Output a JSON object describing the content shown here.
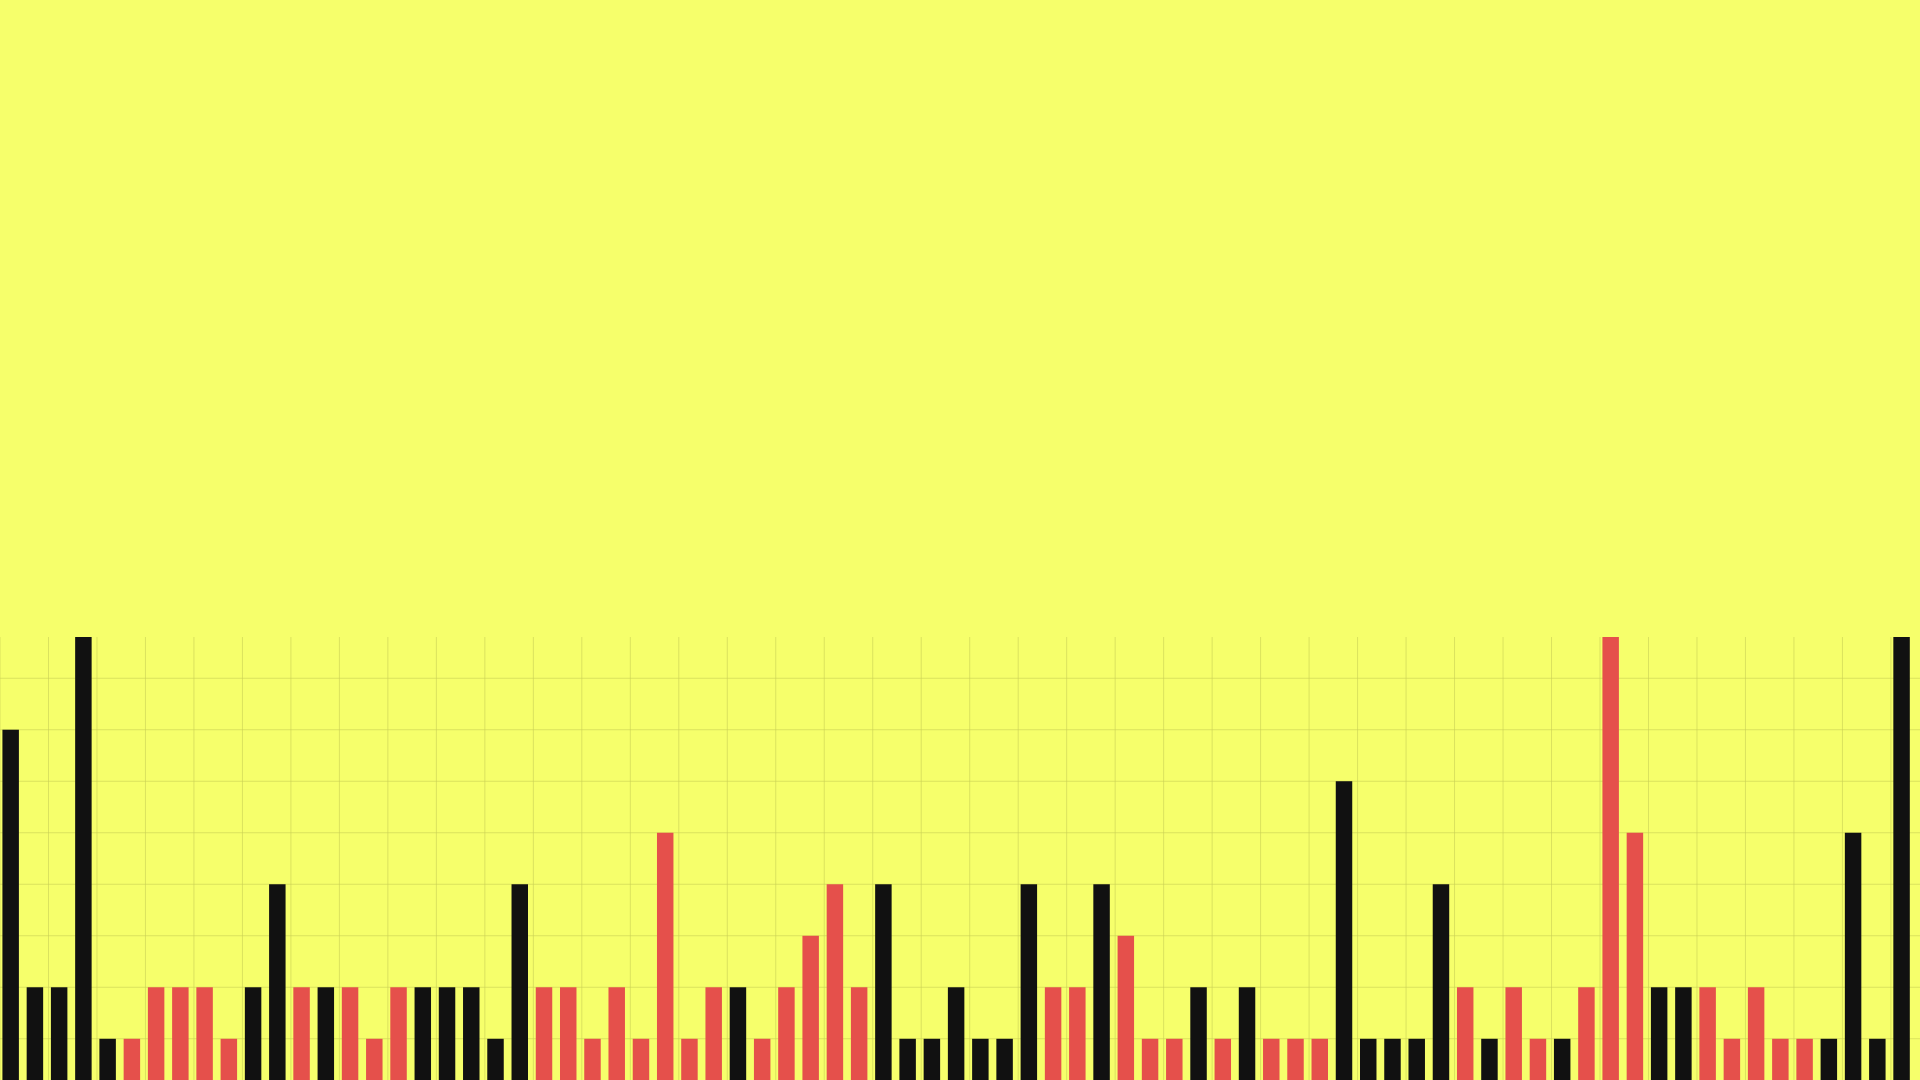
{
  "theme": {
    "background": "#F6FF6B",
    "grid": "#C9CF55",
    "bar_dark": "#111111",
    "bar_red": "#E5504B"
  },
  "chart_data": {
    "type": "bar",
    "title": "",
    "xlabel": "",
    "ylabel": "",
    "grid": true,
    "ylim": [
      0,
      8.6
    ],
    "values": [
      6.8,
      1.8,
      1.8,
      8.6,
      0.8,
      0.8,
      1.8,
      1.8,
      1.8,
      0.8,
      1.8,
      3.8,
      1.8,
      1.8,
      1.8,
      0.8,
      1.8,
      1.8,
      1.8,
      1.8,
      0.8,
      3.8,
      1.8,
      1.8,
      0.8,
      1.8,
      0.8,
      4.8,
      0.8,
      1.8,
      1.8,
      0.8,
      1.8,
      2.8,
      3.8,
      1.8,
      3.8,
      0.8,
      0.8,
      1.8,
      0.8,
      0.8,
      3.8,
      1.8,
      1.8,
      3.8,
      2.8,
      0.8,
      0.8,
      1.8,
      0.8,
      1.8,
      0.8,
      0.8,
      0.8,
      5.8,
      0.8,
      0.8,
      0.8,
      3.8,
      1.8,
      0.8,
      1.8,
      0.8,
      0.8,
      1.8,
      8.6,
      4.8,
      1.8,
      1.8,
      1.8,
      0.8,
      1.8,
      0.8,
      0.8,
      0.8,
      4.8,
      0.8,
      8.6
    ],
    "colors": [
      "dark",
      "dark",
      "dark",
      "dark",
      "dark",
      "red",
      "red",
      "red",
      "red",
      "red",
      "dark",
      "dark",
      "red",
      "dark",
      "red",
      "red",
      "red",
      "dark",
      "dark",
      "dark",
      "dark",
      "dark",
      "red",
      "red",
      "red",
      "red",
      "red",
      "red",
      "red",
      "red",
      "dark",
      "red",
      "red",
      "red",
      "red",
      "red",
      "dark",
      "dark",
      "dark",
      "dark",
      "dark",
      "dark",
      "dark",
      "red",
      "red",
      "dark",
      "red",
      "red",
      "red",
      "dark",
      "red",
      "dark",
      "red",
      "red",
      "red",
      "dark",
      "dark",
      "dark",
      "dark",
      "dark",
      "red",
      "dark",
      "red",
      "red",
      "dark",
      "red",
      "red",
      "red",
      "dark",
      "dark",
      "red",
      "red",
      "red",
      "red",
      "red",
      "dark",
      "dark",
      "dark",
      "dark"
    ]
  }
}
